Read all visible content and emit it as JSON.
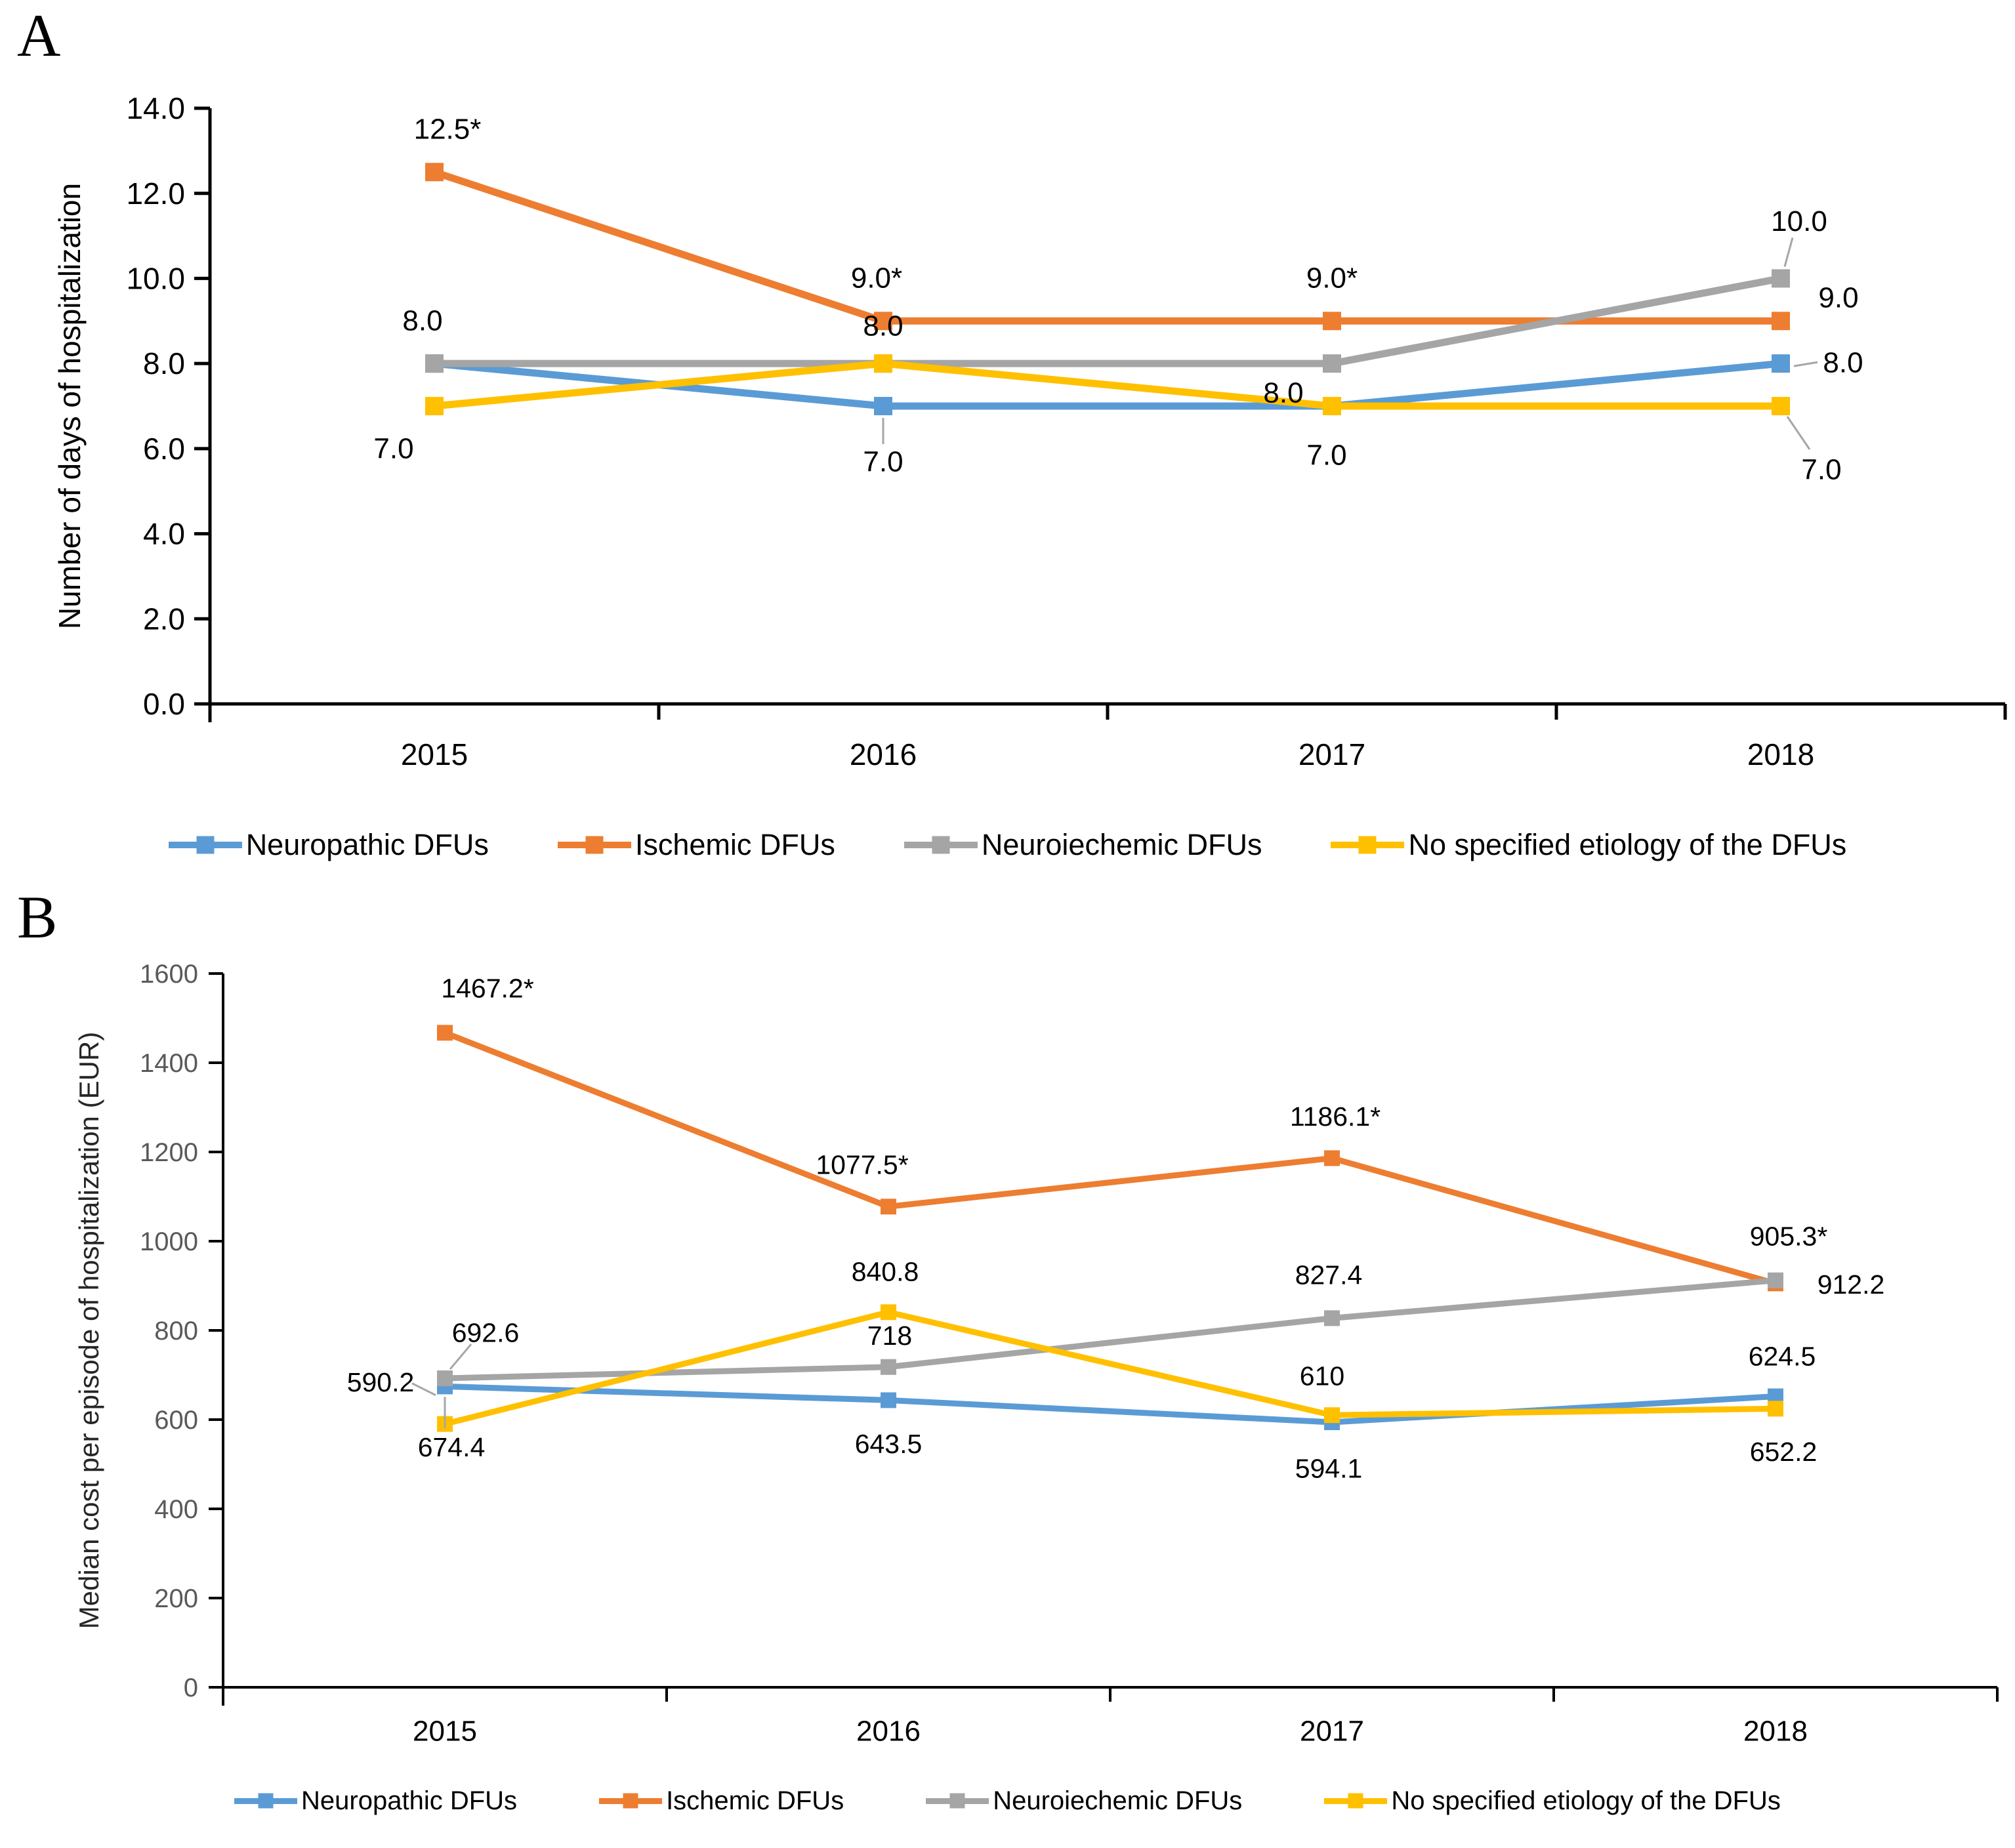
{
  "page": {
    "panel_a_letter": "A",
    "panel_b_letter": "B"
  },
  "colors": {
    "neuropathic": "#5B9BD5",
    "ischemic": "#ED7D31",
    "neuroischemic": "#A5A5A5",
    "no_etiology": "#FFC000",
    "leader_line": "#A6A6A6",
    "axis": "#000000",
    "panel_b_tick_text": "#595959"
  },
  "legend_labels": [
    "Neuropathic DFUs",
    "Ischemic DFUs",
    "Neuroiechemic DFUs",
    "No specified etiology of the DFUs"
  ],
  "chart_data": [
    {
      "id": "A",
      "type": "line",
      "title": "",
      "xlabel": "",
      "ylabel": "Number of days of hospitalization",
      "categories": [
        "2015",
        "2016",
        "2017",
        "2018"
      ],
      "ylim": [
        0,
        14
      ],
      "ytick_step": 2,
      "ytick_labels": [
        "0.0",
        "2.0",
        "4.0",
        "6.0",
        "8.0",
        "10.0",
        "12.0",
        "14.0"
      ],
      "grid": false,
      "legend_position": "bottom",
      "series": [
        {
          "name": "Neuropathic DFUs",
          "color_key": "neuropathic",
          "values": [
            8.0,
            7.0,
            7.0,
            8.0
          ],
          "point_labels": [
            null,
            "7.0",
            "7.0",
            "8.0"
          ]
        },
        {
          "name": "Ischemic DFUs",
          "color_key": "ischemic",
          "values": [
            12.5,
            9.0,
            9.0,
            9.0
          ],
          "point_labels": [
            "12.5*",
            "9.0*",
            "9.0*",
            "9.0"
          ]
        },
        {
          "name": "Neuroiechemic DFUs",
          "color_key": "neuroischemic",
          "values": [
            8.0,
            8.0,
            8.0,
            10.0
          ],
          "point_labels": [
            "8.0",
            null,
            "8.0",
            "10.0"
          ]
        },
        {
          "name": "No specified etiology of the DFUs",
          "color_key": "no_etiology",
          "values": [
            7.0,
            8.0,
            7.0,
            7.0
          ],
          "point_labels": [
            "7.0",
            "8.0",
            null,
            "7.0"
          ]
        }
      ]
    },
    {
      "id": "B",
      "type": "line",
      "title": "",
      "xlabel": "",
      "ylabel": "Median cost per episode of hospitalization (EUR)",
      "categories": [
        "2015",
        "2016",
        "2017",
        "2018"
      ],
      "ylim": [
        0,
        1600
      ],
      "ytick_step": 200,
      "ytick_labels": [
        "0",
        "200",
        "400",
        "600",
        "800",
        "1000",
        "1200",
        "1400",
        "1600"
      ],
      "grid": false,
      "legend_position": "bottom",
      "series": [
        {
          "name": "Neuropathic DFUs",
          "color_key": "neuropathic",
          "values": [
            674.4,
            643.5,
            594.1,
            652.2
          ],
          "point_labels": [
            "674.4",
            "643.5",
            "594.1",
            "652.2"
          ]
        },
        {
          "name": "Ischemic DFUs",
          "color_key": "ischemic",
          "values": [
            1467.2,
            1077.5,
            1186.1,
            905.3
          ],
          "point_labels": [
            "1467.2*",
            "1077.5*",
            "1186.1*",
            "905.3*"
          ]
        },
        {
          "name": "Neuroiechemic DFUs",
          "color_key": "neuroischemic",
          "values": [
            692.6,
            718,
            827.4,
            912.2
          ],
          "point_labels": [
            "692.6",
            "718",
            "827.4",
            "912.2"
          ]
        },
        {
          "name": "No specified etiology of the DFUs",
          "color_key": "no_etiology",
          "values": [
            590.2,
            840.8,
            610,
            624.5
          ],
          "point_labels": [
            "590.2",
            "840.8",
            "610",
            "624.5"
          ]
        }
      ]
    }
  ]
}
